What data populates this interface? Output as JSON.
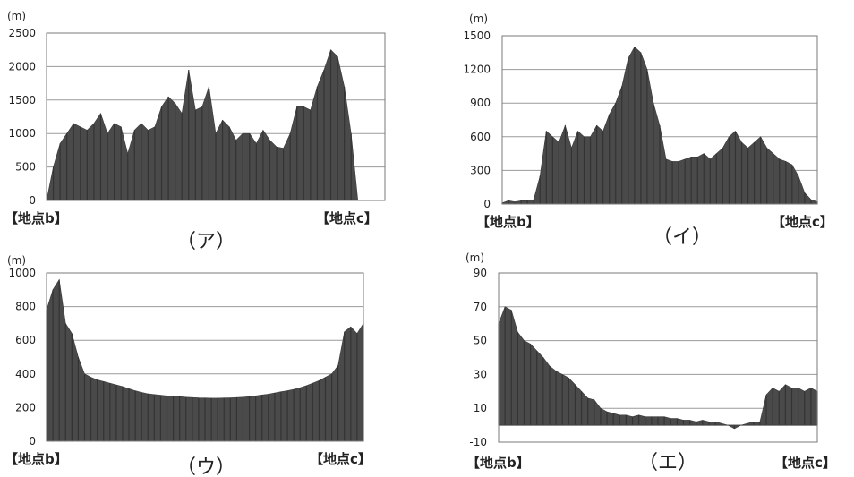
{
  "chart_data": [
    {
      "id": "a",
      "type": "area",
      "caption": "（ア）",
      "unit": "(m)",
      "ylim": [
        0,
        2500
      ],
      "yticks": [
        0,
        500,
        1000,
        1500,
        2000,
        2500
      ],
      "grid": true,
      "start_label": "【地点b】",
      "end_label": "【地点c】",
      "x": [
        0,
        2,
        4,
        6,
        8,
        10,
        12,
        14,
        16,
        18,
        20,
        22,
        24,
        26,
        28,
        30,
        32,
        34,
        36,
        38,
        40,
        42,
        44,
        46,
        48,
        50,
        52,
        54,
        56,
        58,
        60,
        62,
        64,
        66,
        68,
        70,
        72,
        74,
        76,
        78,
        80,
        82,
        84,
        86,
        88,
        90,
        92,
        94,
        96,
        98,
        100
      ],
      "values": [
        0,
        500,
        850,
        1000,
        1150,
        1100,
        1050,
        1150,
        1300,
        1000,
        1150,
        1100,
        700,
        1050,
        1150,
        1050,
        1100,
        1400,
        1550,
        1450,
        1300,
        1950,
        1350,
        1400,
        1700,
        1000,
        1200,
        1100,
        900,
        1000,
        1000,
        850,
        1050,
        900,
        800,
        780,
        1000,
        1400,
        1400,
        1350,
        1700,
        1950,
        2250,
        2150,
        1700,
        1000,
        0,
        0,
        0,
        0,
        0
      ]
    },
    {
      "id": "i",
      "type": "area",
      "caption": "（イ）",
      "unit": "(m)",
      "ylim": [
        0,
        1500
      ],
      "yticks": [
        0,
        300,
        600,
        900,
        1200,
        1500
      ],
      "grid": true,
      "start_label": "【地点b】",
      "end_label": "【地点c】",
      "x": [
        0,
        2,
        4,
        6,
        8,
        10,
        12,
        14,
        16,
        18,
        20,
        22,
        24,
        26,
        28,
        30,
        32,
        34,
        36,
        38,
        40,
        42,
        44,
        46,
        48,
        50,
        52,
        54,
        56,
        58,
        60,
        62,
        64,
        66,
        68,
        70,
        72,
        74,
        76,
        78,
        80,
        82,
        84,
        86,
        88,
        90,
        92,
        94,
        96,
        98,
        100
      ],
      "values": [
        10,
        30,
        20,
        30,
        30,
        40,
        250,
        650,
        600,
        550,
        700,
        500,
        650,
        600,
        600,
        700,
        650,
        800,
        900,
        1050,
        1300,
        1400,
        1350,
        1200,
        900,
        700,
        400,
        380,
        380,
        400,
        420,
        420,
        450,
        400,
        450,
        500,
        600,
        650,
        550,
        500,
        550,
        600,
        500,
        450,
        400,
        380,
        350,
        250,
        100,
        40,
        20
      ]
    },
    {
      "id": "u",
      "type": "area",
      "caption": "（ウ）",
      "unit": "(m)",
      "ylim": [
        0,
        1000
      ],
      "yticks": [
        0,
        200,
        400,
        600,
        800,
        1000
      ],
      "grid": true,
      "start_label": "【地点b】",
      "end_label": "【地点c】",
      "x": [
        0,
        2,
        4,
        6,
        8,
        10,
        12,
        14,
        16,
        18,
        20,
        22,
        24,
        26,
        28,
        30,
        32,
        34,
        36,
        38,
        40,
        42,
        44,
        46,
        48,
        50,
        52,
        54,
        56,
        58,
        60,
        62,
        64,
        66,
        68,
        70,
        72,
        74,
        76,
        78,
        80,
        82,
        84,
        86,
        88,
        90,
        92,
        94,
        96,
        98,
        100
      ],
      "values": [
        780,
        900,
        960,
        700,
        640,
        500,
        400,
        380,
        365,
        355,
        345,
        335,
        325,
        312,
        300,
        290,
        282,
        278,
        274,
        270,
        268,
        265,
        262,
        260,
        258,
        257,
        256,
        256,
        257,
        258,
        260,
        262,
        265,
        270,
        275,
        280,
        287,
        294,
        300,
        308,
        318,
        330,
        345,
        360,
        380,
        400,
        450,
        650,
        680,
        640,
        700
      ]
    },
    {
      "id": "e",
      "type": "area",
      "caption": "（エ）",
      "unit": "(m)",
      "ylim": [
        -10,
        90
      ],
      "yticks": [
        -10,
        10,
        30,
        50,
        70,
        90
      ],
      "grid": true,
      "start_label": "【地点b】",
      "end_label": "【地点c】",
      "x": [
        0,
        2,
        4,
        6,
        8,
        10,
        12,
        14,
        16,
        18,
        20,
        22,
        24,
        26,
        28,
        30,
        32,
        34,
        36,
        38,
        40,
        42,
        44,
        46,
        48,
        50,
        52,
        54,
        56,
        58,
        60,
        62,
        64,
        66,
        68,
        70,
        72,
        74,
        76,
        78,
        80,
        82,
        84,
        86,
        88,
        90,
        92,
        94,
        96,
        98,
        100
      ],
      "values": [
        60,
        70,
        68,
        55,
        50,
        48,
        44,
        40,
        35,
        32,
        30,
        28,
        24,
        20,
        16,
        15,
        10,
        8,
        7,
        6,
        6,
        5,
        6,
        5,
        5,
        5,
        5,
        4,
        4,
        3,
        3,
        2,
        3,
        2,
        2,
        1,
        0,
        -2,
        0,
        1,
        2,
        2,
        18,
        22,
        20,
        24,
        22,
        22,
        20,
        22,
        20
      ]
    }
  ]
}
